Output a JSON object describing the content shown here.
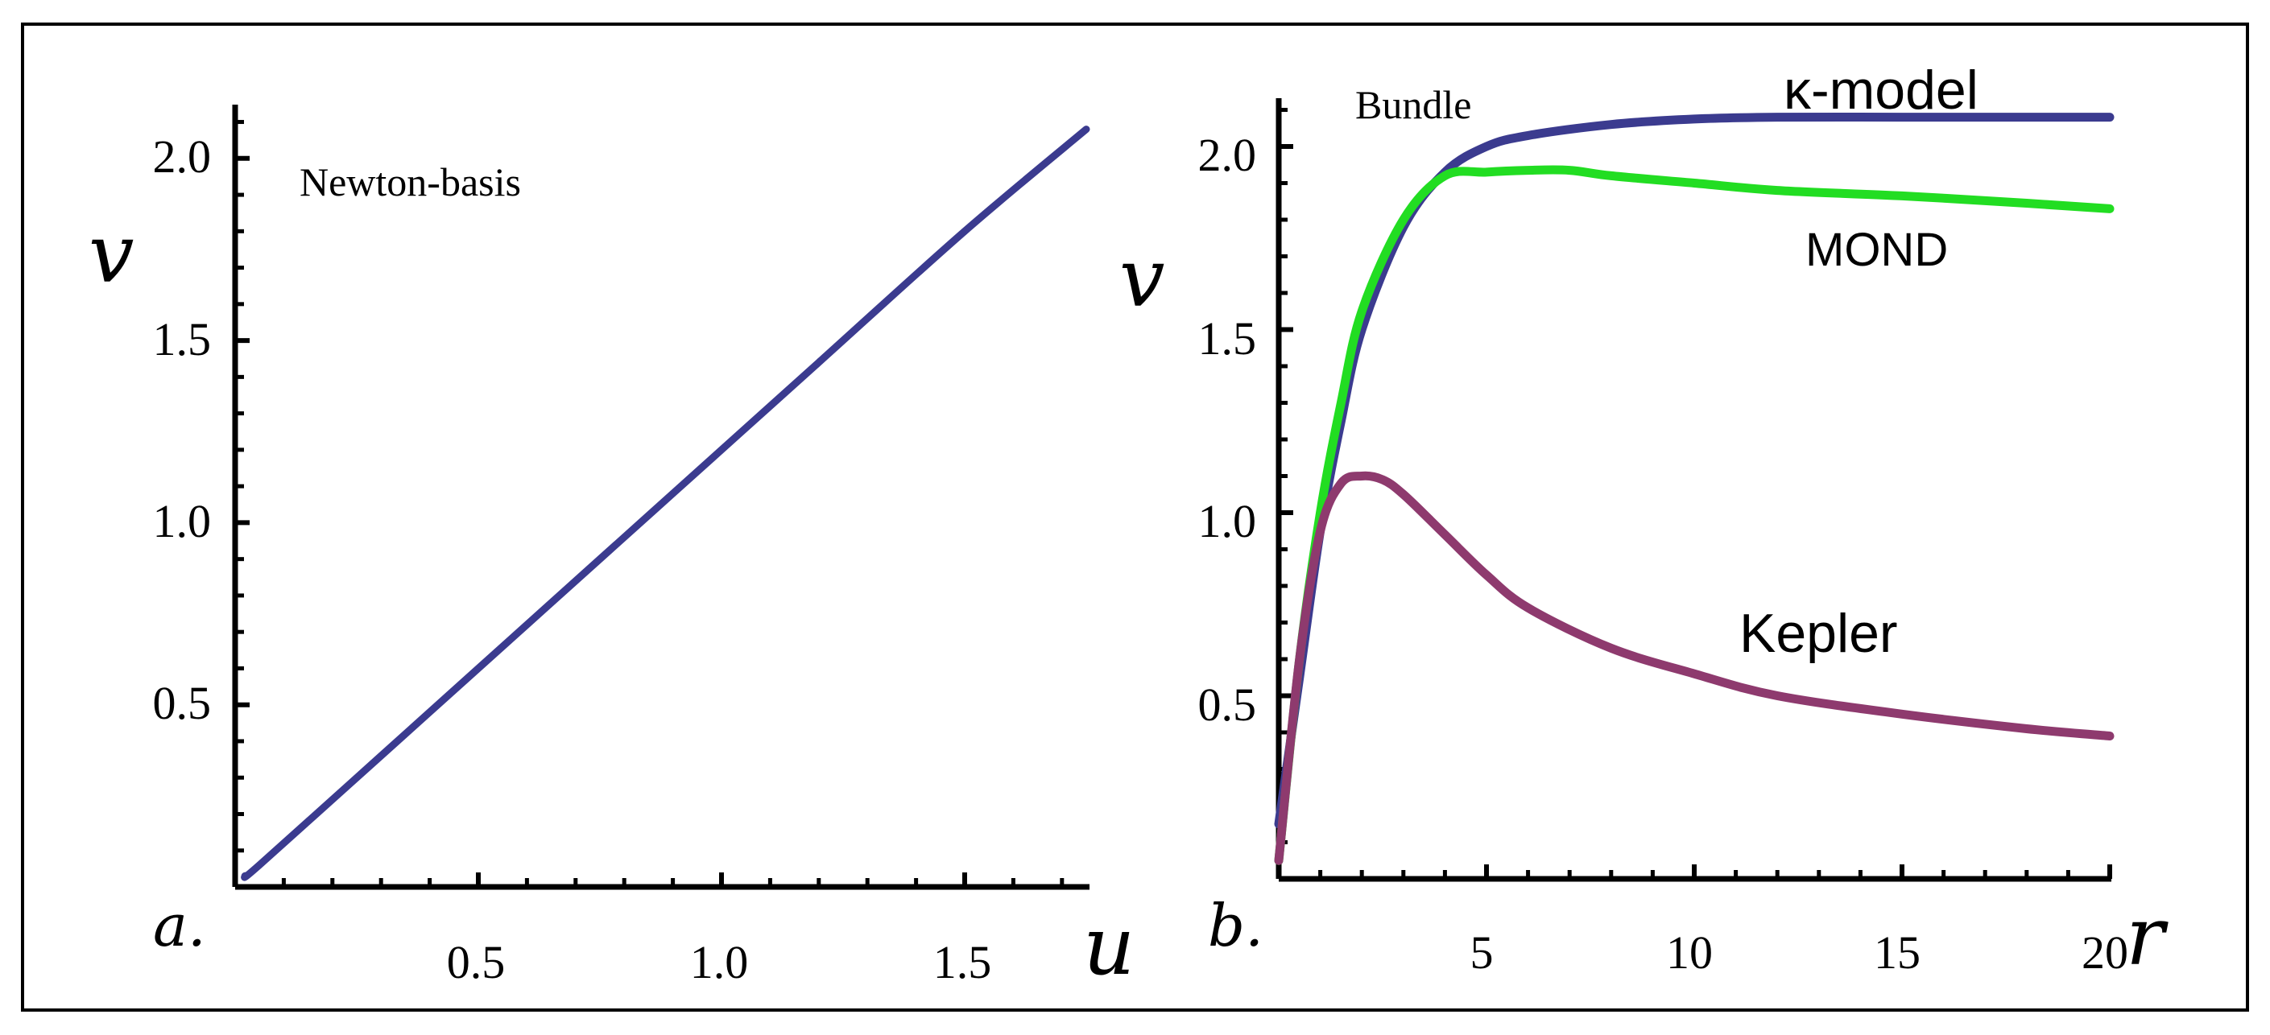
{
  "chart_data": [
    {
      "type": "line",
      "panel": "a.",
      "annotation": "Newton-basis",
      "xlabel": "u",
      "ylabel": "v",
      "xlim": [
        0,
        1.75
      ],
      "ylim": [
        0,
        2.1
      ],
      "xticks": [
        "0.5",
        "1.0",
        "1.5"
      ],
      "yticks": [
        "0.5",
        "1.0",
        "1.5",
        "2.0"
      ],
      "grid": false,
      "series": [
        {
          "color": "#3b3b8f",
          "x": [
            0.02,
            0.05,
            0.3,
            0.6,
            0.9,
            1.2,
            1.5,
            1.75
          ],
          "y": [
            0.03,
            0.06,
            0.36,
            0.72,
            1.08,
            1.44,
            1.8,
            2.08
          ]
        }
      ]
    },
    {
      "type": "line",
      "panel": "b.",
      "annotation": "Bundle",
      "xlabel": "r",
      "ylabel": "v",
      "xlim": [
        0,
        20
      ],
      "ylim": [
        0,
        2.1
      ],
      "xticks": [
        "5",
        "10",
        "15",
        "20"
      ],
      "yticks": [
        "0.5",
        "1.0",
        "1.5",
        "2.0"
      ],
      "grid": false,
      "series": [
        {
          "name": "κ-model",
          "color": "#3b3b8f",
          "x": [
            0,
            0.5,
            1,
            1.5,
            2,
            3,
            4,
            5,
            6,
            8,
            10,
            12,
            15,
            18,
            20
          ],
          "y": [
            0.15,
            0.55,
            0.95,
            1.25,
            1.5,
            1.78,
            1.93,
            2.0,
            2.03,
            2.06,
            2.075,
            2.08,
            2.08,
            2.08,
            2.08
          ]
        },
        {
          "name": "MOND",
          "color": "#22dd22",
          "x": [
            0,
            0.5,
            1,
            1.5,
            2,
            3,
            4,
            5,
            6,
            7,
            8,
            10,
            12,
            15,
            18,
            20
          ],
          "y": [
            0.05,
            0.6,
            1.0,
            1.3,
            1.55,
            1.8,
            1.92,
            1.93,
            1.935,
            1.935,
            1.92,
            1.9,
            1.88,
            1.865,
            1.845,
            1.83
          ]
        },
        {
          "name": "Kepler",
          "color": "#8e3a6e",
          "x": [
            0,
            0.5,
            1,
            1.5,
            2,
            2.5,
            3,
            4,
            5,
            6,
            8,
            10,
            12,
            15,
            18,
            20
          ],
          "y": [
            0.05,
            0.6,
            0.95,
            1.08,
            1.1,
            1.09,
            1.05,
            0.94,
            0.83,
            0.74,
            0.63,
            0.56,
            0.5,
            0.45,
            0.41,
            0.39
          ]
        }
      ]
    }
  ]
}
